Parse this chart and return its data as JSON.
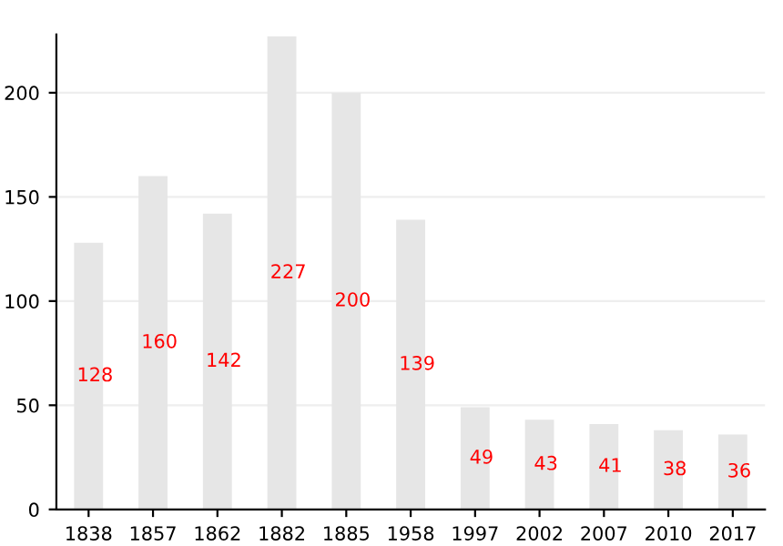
{
  "chart_data": {
    "type": "bar",
    "categories": [
      "1838",
      "1857",
      "1862",
      "1882",
      "1885",
      "1958",
      "1997",
      "2002",
      "2007",
      "2010",
      "2017"
    ],
    "values": [
      128,
      160,
      142,
      227,
      200,
      139,
      49,
      43,
      41,
      38,
      36
    ],
    "color": "#e6e6e6",
    "ylim": [
      0,
      228
    ],
    "yticks": [
      0,
      50,
      100,
      150,
      200
    ],
    "grid": "y",
    "data_labels": true
  }
}
